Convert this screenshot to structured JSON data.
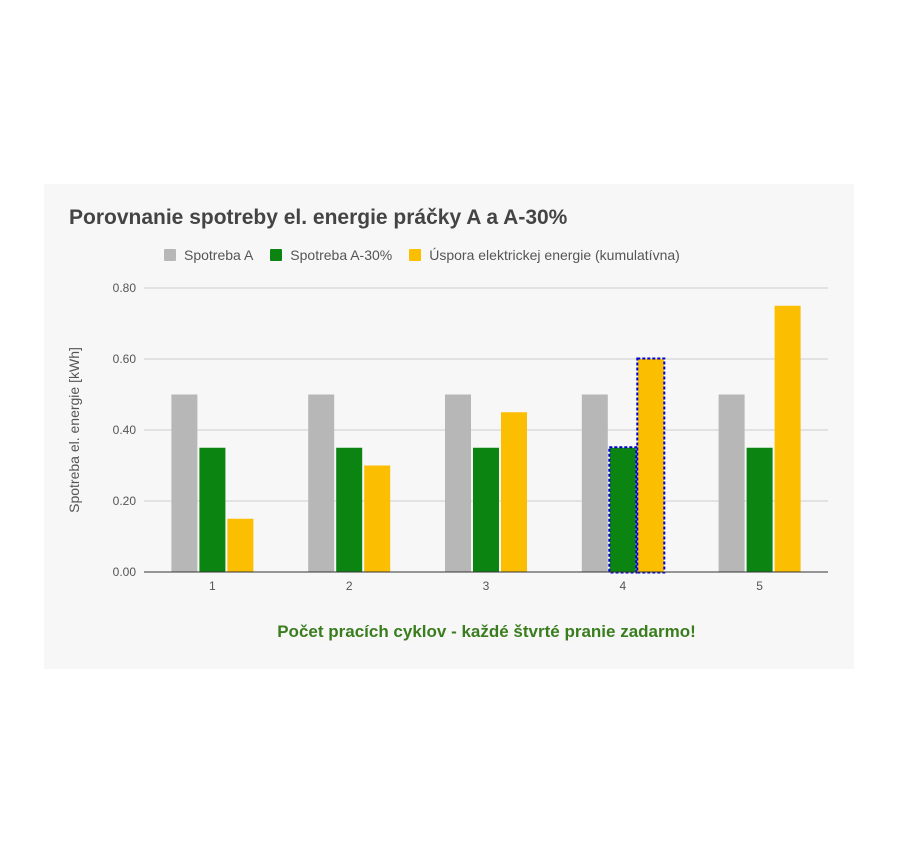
{
  "chart_data": {
    "type": "bar",
    "title": "Porovnanie spotreby el. energie práčky A a A-30%",
    "xlabel": "Počet pracích cyklov - každé štvrté pranie zadarmo!",
    "ylabel": "Spotreba el. energie [kWh]",
    "categories": [
      "1",
      "2",
      "3",
      "4",
      "5"
    ],
    "series": [
      {
        "name": "Spotreba A",
        "color": "#b7b7b7",
        "values": [
          0.5,
          0.5,
          0.5,
          0.5,
          0.5
        ]
      },
      {
        "name": "Spotreba A-30%",
        "color": "#0b8412",
        "values": [
          0.35,
          0.35,
          0.35,
          0.35,
          0.35
        ]
      },
      {
        "name": "Úspora elektrickej energie (kumulatívna)",
        "color": "#fbbe00",
        "values": [
          0.15,
          0.3,
          0.45,
          0.6,
          0.75
        ]
      }
    ],
    "ylim": [
      0,
      0.8
    ],
    "yticks": [
      "0.00",
      "0.20",
      "0.40",
      "0.60",
      "0.80"
    ],
    "grid": true,
    "legend": "top",
    "highlighted_category": "4",
    "highlight_color": "#0000cc"
  }
}
